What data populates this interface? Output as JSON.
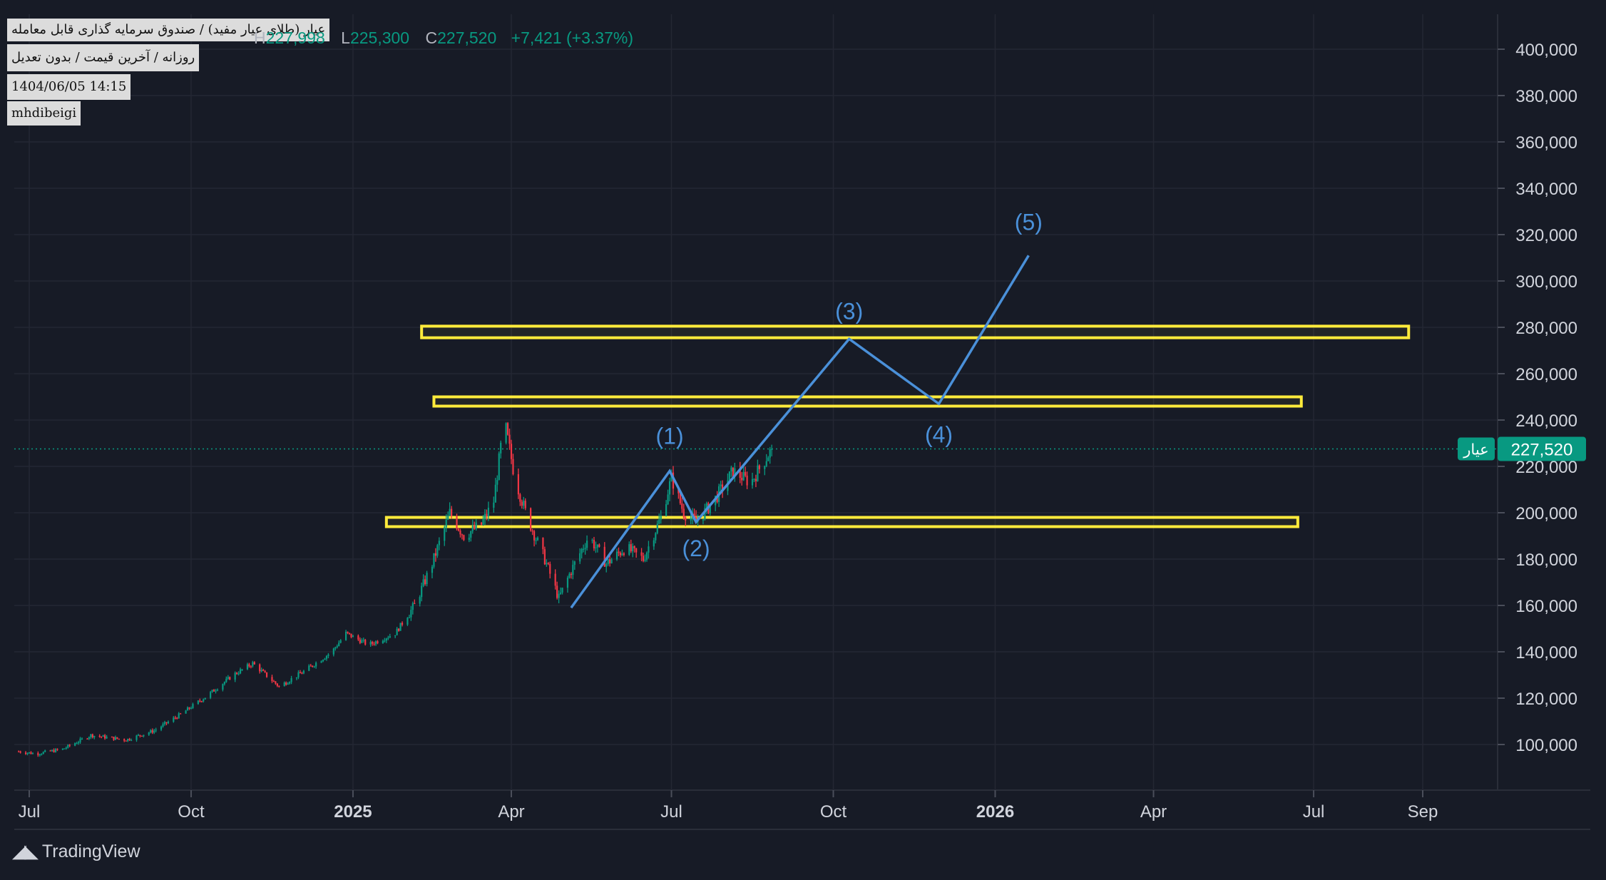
{
  "header": {
    "title_line": "عیار (طلای عیار مفید) / صندوق سرمایه گذاری قابل معامله",
    "subtitle_line": "روزانه / آخرین قیمت / بدون تعدیل",
    "timestamp": "1404/06/05 14:15",
    "author": "mhdibeigi"
  },
  "ohlc": {
    "high_label": "H",
    "high_value": "227,998",
    "low_label": "L",
    "low_value": "225,300",
    "close_label": "C",
    "close_value": "227,520",
    "change": "+7,421 (+3.37%)"
  },
  "branding": {
    "logo_text": "TradingView"
  },
  "price_badge": {
    "symbol": "عیار",
    "price": "227,520"
  },
  "colors": {
    "background": "#171b26",
    "up": "#089981",
    "down": "#f23645",
    "wave": "#4a90d9",
    "zone": "#ffeb3b",
    "axis_text": "#d1d4dc"
  },
  "chart_data": {
    "type": "candlestick",
    "title": "",
    "xlabel": "",
    "ylabel": "",
    "ylim": [
      85000,
      410000
    ],
    "y_ticks": [
      100000,
      120000,
      140000,
      160000,
      180000,
      200000,
      220000,
      240000,
      260000,
      280000,
      300000,
      320000,
      340000,
      360000,
      380000,
      400000
    ],
    "y_tick_labels": [
      "100,000",
      "120,000",
      "140,000",
      "160,000",
      "180,000",
      "200,000",
      "220,000",
      "240,000",
      "260,000",
      "280,000",
      "300,000",
      "320,000",
      "340,000",
      "360,000",
      "380,000",
      "400,000"
    ],
    "x_ticks": [
      {
        "label": "Jul",
        "date": "2024-07-01",
        "bold": false
      },
      {
        "label": "Oct",
        "date": "2024-10-01",
        "bold": false
      },
      {
        "label": "2025",
        "date": "2025-01-01",
        "bold": true
      },
      {
        "label": "Apr",
        "date": "2025-04-01",
        "bold": false
      },
      {
        "label": "Jul",
        "date": "2025-07-01",
        "bold": false
      },
      {
        "label": "Oct",
        "date": "2025-10-01",
        "bold": false
      },
      {
        "label": "2026",
        "date": "2026-01-01",
        "bold": true
      },
      {
        "label": "Apr",
        "date": "2026-04-01",
        "bold": false
      },
      {
        "label": "Jul",
        "date": "2026-07-01",
        "bold": false
      },
      {
        "label": "Sep",
        "date": "2026-09-01",
        "bold": false
      }
    ],
    "grid": true,
    "last_price": 227520,
    "price_path": [
      [
        "2024-06-25",
        97000
      ],
      [
        "2024-07-05",
        96000
      ],
      [
        "2024-07-20",
        98000
      ],
      [
        "2024-08-05",
        104000
      ],
      [
        "2024-08-25",
        102000
      ],
      [
        "2024-09-10",
        106000
      ],
      [
        "2024-09-25",
        113000
      ],
      [
        "2024-10-10",
        121000
      ],
      [
        "2024-10-25",
        130000
      ],
      [
        "2024-11-05",
        135000
      ],
      [
        "2024-11-20",
        125000
      ],
      [
        "2024-12-05",
        132000
      ],
      [
        "2024-12-20",
        140000
      ],
      [
        "2024-12-28",
        148000
      ],
      [
        "2025-01-10",
        143000
      ],
      [
        "2025-01-25",
        148000
      ],
      [
        "2025-02-05",
        160000
      ],
      [
        "2025-02-15",
        178000
      ],
      [
        "2025-02-25",
        200000
      ],
      [
        "2025-03-05",
        190000
      ],
      [
        "2025-03-15",
        195000
      ],
      [
        "2025-03-22",
        205000
      ],
      [
        "2025-03-28",
        240000
      ],
      [
        "2025-04-03",
        215000
      ],
      [
        "2025-04-10",
        198000
      ],
      [
        "2025-04-20",
        180000
      ],
      [
        "2025-04-28",
        163000
      ],
      [
        "2025-05-05",
        175000
      ],
      [
        "2025-05-15",
        190000
      ],
      [
        "2025-05-25",
        178000
      ],
      [
        "2025-06-05",
        185000
      ],
      [
        "2025-06-15",
        180000
      ],
      [
        "2025-06-25",
        198000
      ],
      [
        "2025-07-01",
        215000
      ],
      [
        "2025-07-08",
        200000
      ],
      [
        "2025-07-15",
        196000
      ],
      [
        "2025-07-25",
        205000
      ],
      [
        "2025-08-05",
        218000
      ],
      [
        "2025-08-15",
        213000
      ],
      [
        "2025-08-27",
        227520
      ]
    ],
    "zones": [
      {
        "start": "2025-01-20",
        "end": "2026-06-22",
        "low": 194000,
        "high": 198000
      },
      {
        "start": "2025-02-16",
        "end": "2026-06-24",
        "low": 246000,
        "high": 250000
      },
      {
        "start": "2025-02-09",
        "end": "2026-08-24",
        "low": 275500,
        "high": 280500
      }
    ],
    "wave_path": [
      {
        "date": "2025-05-05",
        "value": 159000,
        "label": ""
      },
      {
        "date": "2025-06-30",
        "value": 218000,
        "label": "(1)"
      },
      {
        "date": "2025-07-15",
        "value": 196000,
        "label": "(2)"
      },
      {
        "date": "2025-10-10",
        "value": 275000,
        "label": "(3)"
      },
      {
        "date": "2025-11-30",
        "value": 247000,
        "label": "(4)"
      },
      {
        "date": "2026-01-20",
        "value": 311000,
        "label": "(5)"
      }
    ]
  }
}
